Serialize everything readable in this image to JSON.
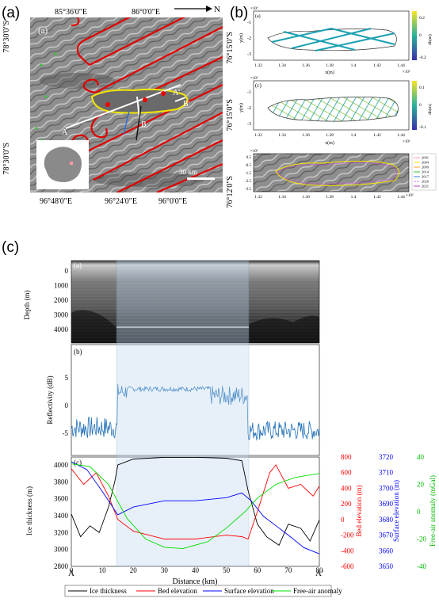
{
  "panels": {
    "a": "(a)",
    "b": "(b)",
    "c": "(c)"
  },
  "map": {
    "north": "N",
    "top_lon": [
      "85°36'0\"E",
      "86°0'0\"E"
    ],
    "bottom_lon": [
      "96°48'0\"E",
      "96°24'0\"E",
      "96°0'0\"E"
    ],
    "left_lat": [
      "78°30'0\"S",
      "78°30'0\"S"
    ],
    "right_lat": [
      "76°15'0\"S",
      "76°15'0\"S",
      "76°12'0\"S"
    ],
    "inner_label": "(a)",
    "points": {
      "A": "A",
      "A2": "A'",
      "B": "B",
      "B2": "B'"
    },
    "scale": "30 km"
  },
  "sub_b": {
    "a": {
      "label": "(a)",
      "exp": "×10⁵",
      "ylabel": "y(m)",
      "xlabel": "x(m)",
      "xexp": "×10⁶",
      "yticks": [
        "-1",
        "-2",
        "-3"
      ],
      "xticks": [
        "1.32",
        "1.34",
        "1.36",
        "1.38",
        "1.4",
        "1.42",
        "1.44"
      ],
      "cbar_title": "dh(m)",
      "cbar_ticks": [
        "0.2",
        "0",
        "-0.2"
      ]
    },
    "c": {
      "label": "(c)",
      "exp": "×10⁵",
      "ylabel": "y(m)",
      "xlabel": "x(m)",
      "xexp": "×10⁶",
      "yticks": [
        "-1",
        "-2",
        "-3"
      ],
      "xticks": [
        "1.32",
        "1.34",
        "1.36",
        "1.38",
        "1.4",
        "1.42",
        "1.44"
      ],
      "cbar_title": "dh(m)",
      "cbar_ticks": [
        "0.1",
        "0",
        "-0.1"
      ]
    },
    "e": {
      "exp": "×10⁴",
      "yticks": [
        "0.5",
        "-0.5",
        "-1.5",
        "-2.5",
        "-3.5"
      ],
      "xticks": [
        "1.32",
        "1.34",
        "1.36",
        "1.38",
        "1.4",
        "1.42",
        "1.44"
      ],
      "xexp": "×10⁶",
      "legend": [
        "2001",
        "2004",
        "2009",
        "2014",
        "2017",
        "2020",
        "2021"
      ]
    }
  },
  "radar": {
    "sublabels": [
      "(a)",
      "(b)",
      "(c)"
    ],
    "depth_label": "Depth (m)",
    "depth_ticks": [
      "0",
      "1000",
      "2000",
      "3000",
      "4000"
    ],
    "refl_label": "Reflectivity (dB)",
    "refl_ticks": [
      "-5",
      "0",
      "5"
    ],
    "x_label": "Distance (km)",
    "x_ticks": [
      "0",
      "10",
      "20",
      "30",
      "40",
      "50",
      "60",
      "70",
      "80"
    ],
    "end_a": "A",
    "end_a2": "A'",
    "ice_label": "Ice thickness (m)",
    "ice_ticks": [
      "4000",
      "3800",
      "3600",
      "3400",
      "3200",
      "3000",
      "2800"
    ],
    "bed_label": "Bed elevation (m)",
    "bed_ticks": [
      "800",
      "600",
      "400",
      "200",
      "0",
      "-200",
      "-400",
      "-600"
    ],
    "surf_label": "Surface elevation (m)",
    "surf_ticks": [
      "3720",
      "3710",
      "3700",
      "3690",
      "3680",
      "3670",
      "3660",
      "3650"
    ],
    "fa_label": "Free-air anomaly (mGal)",
    "fa_ticks": [
      "40",
      "20",
      "0",
      "-20",
      "-40"
    ],
    "legend": [
      "Ice thickness",
      "Bed elevation",
      "Surface elevation",
      "Free-air anomaly"
    ],
    "colors": {
      "ice": "#000000",
      "bed": "#ff0000",
      "surf": "#0000ff",
      "fa": "#00dd00",
      "refl": "#1f6fb5"
    }
  }
}
